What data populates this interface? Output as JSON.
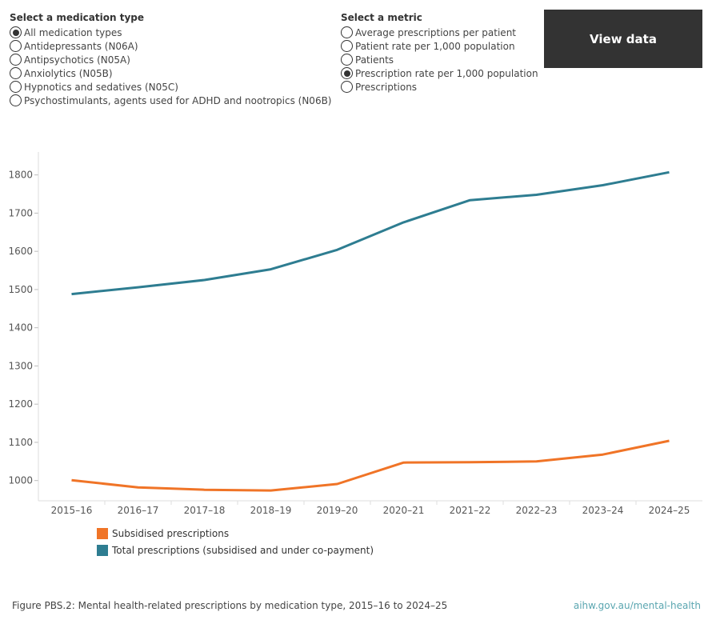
{
  "medication_filter": {
    "title": "Select a medication type",
    "options": [
      "All medication types",
      "Antidepressants (N06A)",
      "Antipsychotics (N05A)",
      "Anxiolytics (N05B)",
      "Hypnotics and sedatives (N05C)",
      "Psychostimulants, agents used for ADHD and nootropics (N06B)"
    ],
    "selected_index": 0
  },
  "metric_filter": {
    "title": "Select a metric",
    "options": [
      "Average prescriptions per patient",
      "Patient rate per 1,000 population",
      "Patients",
      "Prescription rate per 1,000 population",
      "Prescriptions"
    ],
    "selected_index": 3
  },
  "view_data_label": "View data",
  "chart_data": {
    "type": "line",
    "x": [
      "2015–16",
      "2016–17",
      "2017–18",
      "2018–19",
      "2019–20",
      "2020–21",
      "2021–22",
      "2022–23",
      "2023–24",
      "2024–25"
    ],
    "series": [
      {
        "name": "Subsidised prescriptions",
        "color": "#f07427",
        "values": [
          1001,
          982,
          976,
          974,
          991,
          1047,
          1048,
          1050,
          1068,
          1104
        ]
      },
      {
        "name": "Total prescriptions (subsidised and under co-payment)",
        "color": "#2e7d91",
        "values": [
          1488,
          1506,
          1525,
          1553,
          1604,
          1676,
          1734,
          1748,
          1773,
          1807
        ]
      }
    ],
    "y_ticks": [
      1000,
      1100,
      1200,
      1300,
      1400,
      1500,
      1600,
      1700,
      1800
    ],
    "ylim": [
      947,
      1860
    ],
    "grid": false,
    "legend_position": "bottom-left"
  },
  "caption": "Figure PBS.2: Mental health-related prescriptions by medication type, 2015–16 to 2024–25",
  "site_link": "aihw.gov.au/mental-health"
}
